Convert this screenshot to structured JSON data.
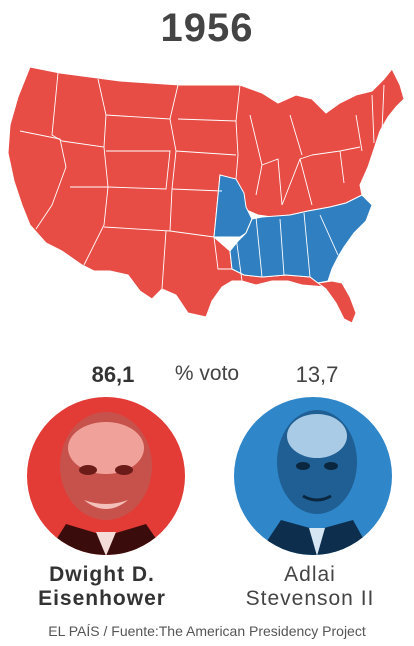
{
  "title": "1956",
  "results": {
    "left": {
      "percent": "86,1",
      "name_line1": "Dwight D.",
      "name_line2": "Eisenhower",
      "color": "#e74c45"
    },
    "label": "% voto",
    "right": {
      "percent": "13,7",
      "name_line1": "Adlai",
      "name_line2": "Stevenson II",
      "color": "#2f7fc1"
    }
  },
  "source": "EL PAÍS / Fuente:The American Presidency Project",
  "map": {
    "icon": "us-states-map",
    "republican_color": "#e74c45",
    "democrat_color": "#2f7fc1"
  }
}
